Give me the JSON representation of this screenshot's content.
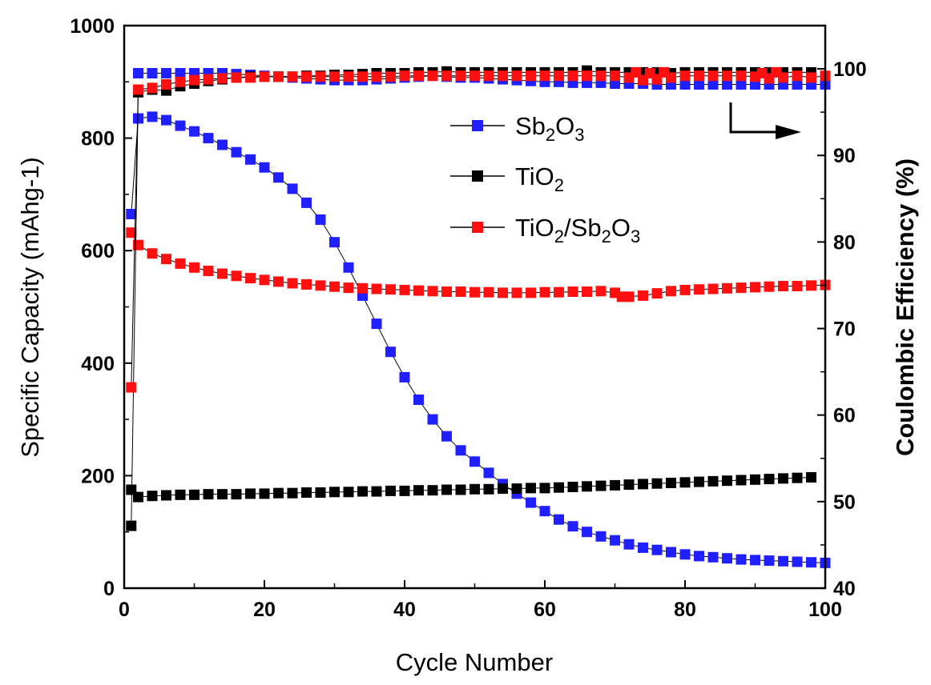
{
  "chart_data": {
    "type": "scatter",
    "xlabel": "Cycle Number",
    "ylabel_left": "Specific Capacity (mAhg-1)",
    "ylabel_right": "Coulombic Efficiency (%)",
    "xlim": [
      0,
      100
    ],
    "ylim_left": [
      0,
      1000
    ],
    "ylim_right": [
      40,
      105
    ],
    "x_ticks": [
      "0",
      "20",
      "40",
      "60",
      "80",
      "100"
    ],
    "y_left_ticks": [
      "0",
      "200",
      "400",
      "600",
      "800",
      "1000"
    ],
    "y_right_ticks": [
      "40",
      "50",
      "60",
      "70",
      "80",
      "90",
      "100"
    ],
    "grid": false,
    "legend_position": "upper-center",
    "legend": [
      {
        "name": "Sb2O3",
        "base1": "Sb",
        "sub1": "2",
        "base2": "O",
        "sub2": "3",
        "base3": "",
        "sub3": "",
        "base4": "",
        "color": "#1f1fff"
      },
      {
        "name": "TiO2",
        "base1": "TiO",
        "sub1": "2",
        "base2": "",
        "sub2": "",
        "base3": "",
        "sub3": "",
        "base4": "",
        "color": "#000000"
      },
      {
        "name": "TiO2/Sb2O3",
        "base1": "TiO",
        "sub1": "2",
        "base2": "/Sb",
        "sub2": "2",
        "base3": "O",
        "sub3": "3",
        "base4": "",
        "color": "#ff1010"
      }
    ],
    "annotation": "arrow pointing right: efficiency curves use right axis",
    "series": [
      {
        "name": "Sb2O3 capacity",
        "axis": "left",
        "color": "#1f1fff",
        "x": [
          1,
          2,
          4,
          6,
          8,
          10,
          12,
          14,
          16,
          18,
          20,
          22,
          24,
          26,
          28,
          30,
          32,
          34,
          36,
          38,
          40,
          42,
          44,
          46,
          48,
          50,
          52,
          54,
          56,
          58,
          60,
          62,
          64,
          66,
          68,
          70,
          72,
          74,
          76,
          78,
          80,
          82,
          84,
          86,
          88,
          90,
          92,
          94,
          96,
          98,
          100
        ],
        "y": [
          665,
          835,
          838,
          832,
          822,
          812,
          800,
          788,
          775,
          762,
          748,
          730,
          710,
          685,
          655,
          615,
          570,
          520,
          470,
          420,
          375,
          335,
          300,
          270,
          245,
          225,
          205,
          185,
          168,
          152,
          137,
          122,
          110,
          100,
          92,
          85,
          78,
          72,
          68,
          64,
          60,
          57,
          55,
          53,
          51,
          50,
          49,
          48,
          47,
          46,
          45
        ]
      },
      {
        "name": "TiO2 capacity",
        "axis": "left",
        "color": "#000000",
        "x": [
          1,
          2,
          4,
          6,
          8,
          10,
          12,
          14,
          16,
          18,
          20,
          22,
          24,
          26,
          28,
          30,
          32,
          34,
          36,
          38,
          40,
          42,
          44,
          46,
          48,
          50,
          52,
          54,
          56,
          58,
          60,
          62,
          64,
          66,
          68,
          70,
          72,
          74,
          76,
          78,
          80,
          82,
          84,
          86,
          88,
          90,
          92,
          94,
          96,
          98
        ],
        "y": [
          175,
          162,
          164,
          165,
          166,
          166,
          167,
          167,
          167,
          168,
          168,
          169,
          169,
          170,
          170,
          171,
          171,
          172,
          172,
          173,
          173,
          174,
          174,
          175,
          175,
          176,
          176,
          177,
          177,
          178,
          178,
          179,
          180,
          181,
          182,
          183,
          184,
          185,
          186,
          187,
          188,
          189,
          190,
          191,
          192,
          193,
          194,
          195,
          196,
          197
        ]
      },
      {
        "name": "TiO2/Sb2O3 capacity",
        "axis": "left",
        "color": "#ff1010",
        "x": [
          1,
          2,
          4,
          6,
          8,
          10,
          12,
          14,
          16,
          18,
          20,
          22,
          24,
          26,
          28,
          30,
          32,
          34,
          36,
          38,
          40,
          42,
          44,
          46,
          48,
          50,
          52,
          54,
          56,
          58,
          60,
          62,
          64,
          66,
          68,
          70,
          71,
          72,
          74,
          76,
          78,
          80,
          82,
          84,
          86,
          88,
          90,
          92,
          94,
          96,
          98,
          100
        ],
        "y": [
          632,
          610,
          595,
          585,
          577,
          570,
          564,
          559,
          555,
          551,
          548,
          545,
          542,
          540,
          538,
          536,
          534,
          533,
          532,
          531,
          530,
          529,
          528,
          527,
          527,
          526,
          526,
          525,
          525,
          525,
          526,
          526,
          527,
          527,
          528,
          525,
          518,
          518,
          520,
          524,
          528,
          530,
          531,
          532,
          533,
          534,
          535,
          536,
          537,
          537,
          538,
          539
        ]
      },
      {
        "name": "Sb2O3 efficiency",
        "axis": "right",
        "color": "#1f1fff",
        "x": [
          2,
          4,
          6,
          8,
          10,
          12,
          14,
          16,
          18,
          20,
          22,
          24,
          26,
          28,
          30,
          32,
          34,
          36,
          38,
          40,
          42,
          44,
          46,
          48,
          50,
          52,
          54,
          56,
          58,
          60,
          62,
          64,
          66,
          68,
          70,
          72,
          74,
          76,
          78,
          80,
          82,
          84,
          86,
          88,
          90,
          92,
          94,
          96,
          98,
          100
        ],
        "y": [
          99.5,
          99.5,
          99.5,
          99.5,
          99.5,
          99.5,
          99.5,
          99.4,
          99.3,
          99.2,
          99.1,
          99.0,
          98.9,
          98.8,
          98.7,
          98.7,
          98.7,
          98.8,
          98.9,
          99.0,
          99.1,
          99.2,
          99.1,
          99.0,
          99.0,
          98.9,
          98.8,
          98.7,
          98.6,
          98.5,
          98.5,
          98.4,
          98.4,
          98.4,
          98.3,
          98.3,
          98.3,
          98.2,
          98.2,
          98.2,
          98.2,
          98.2,
          98.2,
          98.2,
          98.2,
          98.2,
          98.2,
          98.2,
          98.2,
          98.2
        ]
      },
      {
        "name": "TiO2 efficiency",
        "axis": "right",
        "color": "#000000",
        "x": [
          1,
          2,
          4,
          6,
          8,
          10,
          12,
          14,
          16,
          18,
          20,
          22,
          24,
          26,
          28,
          30,
          32,
          34,
          36,
          38,
          40,
          42,
          44,
          46,
          48,
          50,
          52,
          54,
          56,
          58,
          60,
          62,
          64,
          66,
          68,
          70,
          72,
          74,
          76,
          78,
          80,
          82,
          84,
          86,
          88,
          90,
          92,
          94,
          96,
          98
        ],
        "y": [
          47.2,
          97.3,
          97.6,
          97.5,
          98.0,
          98.3,
          98.6,
          98.8,
          99.0,
          99.1,
          99.1,
          99.1,
          99.1,
          99.2,
          99.2,
          99.3,
          99.3,
          99.4,
          99.5,
          99.5,
          99.5,
          99.6,
          99.6,
          99.7,
          99.6,
          99.6,
          99.6,
          99.6,
          99.6,
          99.6,
          99.6,
          99.6,
          99.6,
          99.8,
          99.6,
          99.6,
          99.6,
          99.6,
          99.6,
          99.5,
          99.6,
          99.6,
          99.6,
          99.6,
          99.6,
          99.6,
          99.6,
          99.6,
          99.6,
          99.6
        ]
      },
      {
        "name": "TiO2/Sb2O3 efficiency",
        "axis": "right",
        "color": "#ff1010",
        "x": [
          1,
          2,
          4,
          6,
          8,
          10,
          12,
          14,
          16,
          18,
          20,
          22,
          24,
          26,
          28,
          30,
          32,
          34,
          36,
          38,
          40,
          42,
          44,
          46,
          48,
          50,
          52,
          54,
          56,
          58,
          60,
          62,
          64,
          66,
          68,
          70,
          72,
          73,
          74,
          75,
          76,
          77,
          78,
          80,
          82,
          84,
          86,
          88,
          90,
          91,
          92,
          93,
          94,
          96,
          98,
          100
        ],
        "y": [
          63.2,
          97.6,
          97.8,
          98.2,
          98.5,
          98.7,
          98.8,
          98.9,
          99.0,
          99.0,
          99.1,
          99.1,
          99.1,
          99.1,
          99.1,
          99.1,
          99.1,
          99.1,
          99.1,
          99.1,
          99.2,
          99.2,
          99.2,
          99.2,
          99.2,
          99.2,
          99.2,
          99.2,
          99.2,
          99.2,
          99.2,
          99.2,
          99.2,
          99.2,
          99.2,
          99.2,
          99.0,
          99.6,
          98.7,
          99.5,
          98.8,
          99.6,
          99.0,
          99.2,
          99.2,
          99.2,
          99.2,
          99.2,
          99.1,
          99.5,
          98.9,
          99.6,
          99.0,
          99.2,
          99.0,
          99.2
        ]
      }
    ]
  }
}
